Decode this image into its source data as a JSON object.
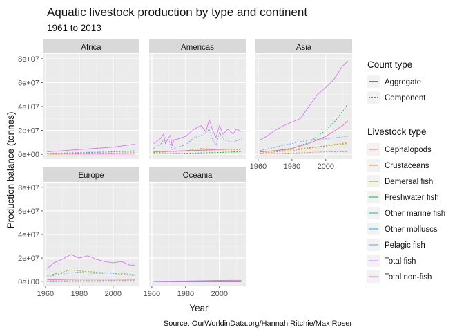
{
  "chart_data": {
    "type": "line",
    "title": "Aquatic livestock production by type and continent",
    "subtitle": "1961 to 2013",
    "xlabel": "Year",
    "ylabel": "Production balance (tonnes)",
    "caption": "Source: OurWorldinData.org/Hannah Ritchie/Max Roser",
    "xlim": [
      1961,
      2013
    ],
    "ylim": [
      0,
      80000000
    ],
    "x_ticks": [
      1960,
      1980,
      2000
    ],
    "x_tick_labels": [
      "1960",
      "1980",
      "2000"
    ],
    "y_ticks": [
      0,
      20000000,
      40000000,
      60000000,
      80000000
    ],
    "y_tick_labels": [
      "0e+00",
      "2e+07",
      "4e+07",
      "6e+07",
      "8e+07"
    ],
    "grid": true,
    "legend_position": "right",
    "linetype_legend": {
      "title": "Count type",
      "entries": [
        {
          "label": "Aggregate",
          "dash": "solid"
        },
        {
          "label": "Component",
          "dash": "dotted"
        }
      ]
    },
    "color_legend": {
      "title": "Livestock type",
      "entries": [
        {
          "label": "Cephalopods",
          "color": "#F8766D"
        },
        {
          "label": "Crustaceans",
          "color": "#D39200"
        },
        {
          "label": "Demersal fish",
          "color": "#93AA00"
        },
        {
          "label": "Freshwater fish",
          "color": "#00BA38"
        },
        {
          "label": "Other marine fish",
          "color": "#00C19F"
        },
        {
          "label": "Other molluscs",
          "color": "#00B9E3"
        },
        {
          "label": "Pelagic fish",
          "color": "#619CFF"
        },
        {
          "label": "Total fish",
          "color": "#DB72FB"
        },
        {
          "label": "Total non-fish",
          "color": "#FF61C3"
        }
      ]
    },
    "panels": [
      {
        "name": "Africa",
        "series": [
          {
            "type": "Total fish",
            "count": "Aggregate",
            "x": [
              1961,
              1970,
              1980,
              1990,
              2000,
              2013
            ],
            "y": [
              2000000,
              3000000,
              4000000,
              5000000,
              6000000,
              8500000
            ]
          },
          {
            "type": "Total non-fish",
            "count": "Aggregate",
            "x": [
              1961,
              2013
            ],
            "y": [
              100000,
              300000
            ]
          },
          {
            "type": "Freshwater fish",
            "count": "Component",
            "x": [
              1961,
              1980,
              2000,
              2013
            ],
            "y": [
              800000,
              1100000,
              2000000,
              3000000
            ]
          },
          {
            "type": "Pelagic fish",
            "count": "Component",
            "x": [
              1961,
              1980,
              2000,
              2013
            ],
            "y": [
              600000,
              1500000,
              2000000,
              2400000
            ]
          },
          {
            "type": "Demersal fish",
            "count": "Component",
            "x": [
              1961,
              1980,
              2000,
              2013
            ],
            "y": [
              300000,
              700000,
              1000000,
              1300000
            ]
          }
        ]
      },
      {
        "name": "Americas",
        "series": [
          {
            "type": "Total fish",
            "count": "Aggregate",
            "x": [
              1961,
              1963,
              1965,
              1967,
              1968,
              1970,
              1971,
              1972,
              1973,
              1976,
              1980,
              1985,
              1989,
              1992,
              1994,
              1996,
              1998,
              2000,
              2002,
              2005,
              2008,
              2010,
              2013
            ],
            "y": [
              9000000,
              11000000,
              13000000,
              17000000,
              9000000,
              14000000,
              16000000,
              7000000,
              12000000,
              13000000,
              15000000,
              21000000,
              24000000,
              19000000,
              29000000,
              20000000,
              14000000,
              24000000,
              17000000,
              21000000,
              17000000,
              21000000,
              19000000
            ]
          },
          {
            "type": "Pelagic fish",
            "count": "Component",
            "x": [
              1961,
              1965,
              1968,
              1970,
              1972,
              1975,
              1980,
              1985,
              1990,
              1994,
              1996,
              1998,
              2000,
              2003,
              2008,
              2013
            ],
            "y": [
              5000000,
              8000000,
              14000000,
              12000000,
              4000000,
              6000000,
              8000000,
              14000000,
              16000000,
              21000000,
              12000000,
              8000000,
              18000000,
              12000000,
              10000000,
              13000000
            ]
          },
          {
            "type": "Demersal fish",
            "count": "Component",
            "x": [
              1961,
              1970,
              1980,
              1990,
              2000,
              2013
            ],
            "y": [
              1800000,
              2500000,
              3000000,
              3200000,
              2600000,
              2200000
            ]
          },
          {
            "type": "Crustaceans",
            "count": "Component",
            "x": [
              1961,
              1980,
              1990,
              2000,
              2013
            ],
            "y": [
              1200000,
              3000000,
              5000000,
              4000000,
              4000000
            ]
          },
          {
            "type": "Freshwater fish",
            "count": "Component",
            "x": [
              1961,
              1980,
              2000,
              2013
            ],
            "y": [
              500000,
              800000,
              1500000,
              2000000
            ]
          },
          {
            "type": "Total non-fish",
            "count": "Aggregate",
            "x": [
              1961,
              1980,
              2000,
              2013
            ],
            "y": [
              2000000,
              3000000,
              4000000,
              4500000
            ]
          }
        ]
      },
      {
        "name": "Asia",
        "series": [
          {
            "type": "Total fish",
            "count": "Aggregate",
            "x": [
              1961,
              1965,
              1970,
              1975,
              1980,
              1985,
              1990,
              1995,
              2000,
              2005,
              2010,
              2013
            ],
            "y": [
              12000000,
              15000000,
              20000000,
              24000000,
              27000000,
              30000000,
              40000000,
              50000000,
              56000000,
              63000000,
              74000000,
              78000000
            ]
          },
          {
            "type": "Freshwater fish",
            "count": "Component",
            "x": [
              1961,
              1970,
              1980,
              1990,
              2000,
              2005,
              2010,
              2013
            ],
            "y": [
              2000000,
              3000000,
              5000000,
              10000000,
              20000000,
              27000000,
              36000000,
              42000000
            ]
          },
          {
            "type": "Pelagic fish",
            "count": "Component",
            "x": [
              1961,
              1970,
              1980,
              1990,
              2000,
              2013
            ],
            "y": [
              3000000,
              6000000,
              9000000,
              12000000,
              13000000,
              15000000
            ]
          },
          {
            "type": "Total non-fish",
            "count": "Aggregate",
            "x": [
              1961,
              1970,
              1980,
              1990,
              2000,
              2010,
              2013
            ],
            "y": [
              2000000,
              3000000,
              5000000,
              9000000,
              15000000,
              24000000,
              28000000
            ]
          },
          {
            "type": "Demersal fish",
            "count": "Component",
            "x": [
              1961,
              1980,
              2000,
              2013
            ],
            "y": [
              2000000,
              4000000,
              7000000,
              9000000
            ]
          },
          {
            "type": "Crustaceans",
            "count": "Component",
            "x": [
              1961,
              1980,
              2000,
              2013
            ],
            "y": [
              1000000,
              3000000,
              7000000,
              10000000
            ]
          },
          {
            "type": "Cephalopods",
            "count": "Component",
            "x": [
              1961,
              1980,
              2000,
              2013
            ],
            "y": [
              300000,
              1000000,
              2000000,
              2000000
            ]
          }
        ]
      },
      {
        "name": "Europe",
        "series": [
          {
            "type": "Total fish",
            "count": "Aggregate",
            "x": [
              1961,
              1965,
              1970,
              1975,
              1980,
              1985,
              1990,
              1995,
              2000,
              2005,
              2010,
              2013
            ],
            "y": [
              11000000,
              16000000,
              19000000,
              23000000,
              20000000,
              22000000,
              19000000,
              17000000,
              16000000,
              17000000,
              14000000,
              14000000
            ]
          },
          {
            "type": "Demersal fish",
            "count": "Component",
            "x": [
              1961,
              1970,
              1975,
              1980,
              1990,
              2000,
              2013
            ],
            "y": [
              5000000,
              8000000,
              10000000,
              9000000,
              8000000,
              7000000,
              5000000
            ]
          },
          {
            "type": "Pelagic fish",
            "count": "Component",
            "x": [
              1961,
              1970,
              1980,
              1990,
              2000,
              2013
            ],
            "y": [
              4000000,
              7000000,
              8000000,
              7000000,
              7500000,
              6000000
            ]
          },
          {
            "type": "Total non-fish",
            "count": "Aggregate",
            "x": [
              1961,
              1980,
              2000,
              2013
            ],
            "y": [
              1500000,
              2000000,
              2000000,
              1800000
            ]
          },
          {
            "type": "Freshwater fish",
            "count": "Component",
            "x": [
              1961,
              1980,
              2000,
              2013
            ],
            "y": [
              500000,
              700000,
              800000,
              800000
            ]
          }
        ]
      },
      {
        "name": "Oceania",
        "series": [
          {
            "type": "Total fish",
            "count": "Aggregate",
            "x": [
              1961,
              1980,
              2000,
              2013
            ],
            "y": [
              200000,
              500000,
              1000000,
              1100000
            ]
          },
          {
            "type": "Total non-fish",
            "count": "Aggregate",
            "x": [
              1961,
              1980,
              2000,
              2013
            ],
            "y": [
              100000,
              200000,
              400000,
              400000
            ]
          },
          {
            "type": "Pelagic fish",
            "count": "Component",
            "x": [
              1961,
              1980,
              2000,
              2013
            ],
            "y": [
              100000,
              300000,
              600000,
              600000
            ]
          }
        ]
      }
    ]
  }
}
